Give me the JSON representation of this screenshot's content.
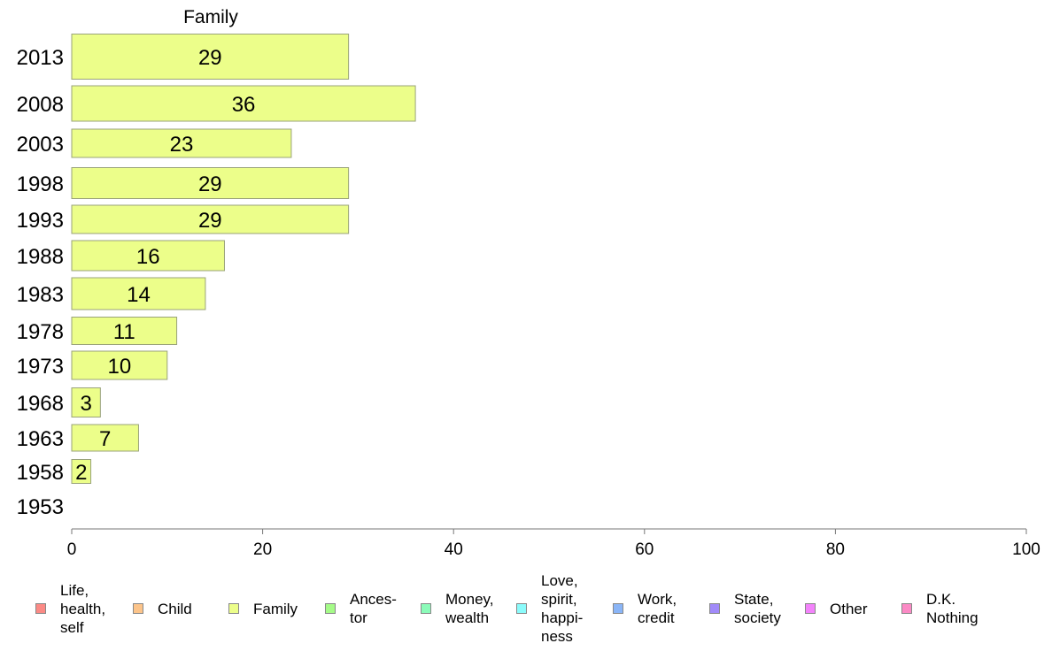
{
  "chart_data": {
    "type": "bar",
    "orientation": "horizontal",
    "title": "Family",
    "categories": [
      "2013",
      "2008",
      "2003",
      "1998",
      "1993",
      "1988",
      "1983",
      "1978",
      "1973",
      "1968",
      "1963",
      "1958",
      "1953"
    ],
    "series": [
      {
        "name": "Family",
        "values": [
          29,
          36,
          23,
          29,
          29,
          16,
          14,
          11,
          10,
          3,
          7,
          2,
          null
        ]
      }
    ],
    "data_labels": [
      "29",
      "36",
      "23",
      "29",
      "29",
      "16",
      "14",
      "11",
      "10",
      "3",
      "7",
      "2",
      ""
    ],
    "xlim": [
      0,
      100
    ],
    "x_ticks": [
      0,
      20,
      40,
      60,
      80,
      100
    ],
    "x_tick_labels": [
      "0",
      "20",
      "40",
      "60",
      "80",
      "100"
    ],
    "grid": false,
    "bar_color": "#ecfe8a",
    "legend_position": "bottom",
    "legend": [
      {
        "label": "Life,\nhealth,\nself",
        "color": "#fb8a85"
      },
      {
        "label": "Child",
        "color": "#fcc48a"
      },
      {
        "label": "Family",
        "color": "#ecfe8a"
      },
      {
        "label": "Ances-\ntor",
        "color": "#a5fb88"
      },
      {
        "label": "Money,\nwealth",
        "color": "#8bfbb9"
      },
      {
        "label": "Love,\nspirit,\nhappi-\nness",
        "color": "#8bfbfb"
      },
      {
        "label": "Work,\ncredit",
        "color": "#8ab5f7"
      },
      {
        "label": "State,\nsociety",
        "color": "#a18af9"
      },
      {
        "label": "Other",
        "color": "#f383fb"
      },
      {
        "label": "D.K.\nNothing",
        "color": "#fb8ac5"
      }
    ]
  }
}
